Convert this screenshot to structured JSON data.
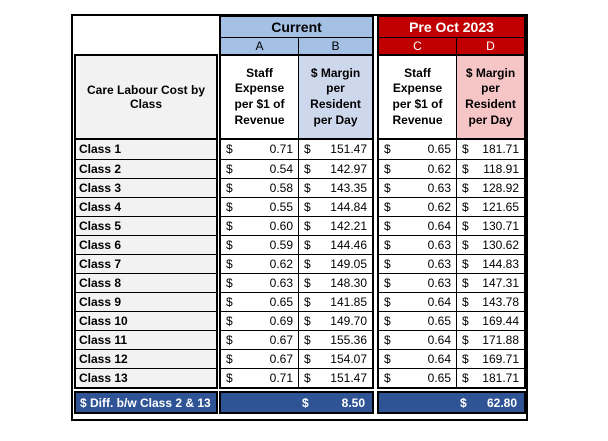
{
  "table": {
    "currency": "$",
    "groups": [
      {
        "name": "Current",
        "letters": [
          "A",
          "B"
        ]
      },
      {
        "name": "Pre Oct 2023",
        "letters": [
          "C",
          "D"
        ]
      }
    ],
    "row_header": "Care Labour Cost by\nClass",
    "col_header_staff": "Staff\nExpense\nper $1 of\nRevenue",
    "col_header_margin": "$ Margin\nper\nResident\nper Day",
    "rows": [
      {
        "label": "Class 1",
        "values": [
          "0.71",
          "151.47",
          "0.65",
          "181.71"
        ]
      },
      {
        "label": "Class 2",
        "values": [
          "0.54",
          "142.97",
          "0.62",
          "118.91"
        ]
      },
      {
        "label": "Class 3",
        "values": [
          "0.58",
          "143.35",
          "0.63",
          "128.92"
        ]
      },
      {
        "label": "Class 4",
        "values": [
          "0.55",
          "144.84",
          "0.62",
          "121.65"
        ]
      },
      {
        "label": "Class 5",
        "values": [
          "0.60",
          "142.21",
          "0.64",
          "130.71"
        ]
      },
      {
        "label": "Class 6",
        "values": [
          "0.59",
          "144.46",
          "0.63",
          "130.62"
        ]
      },
      {
        "label": "Class 7",
        "values": [
          "0.62",
          "149.05",
          "0.63",
          "144.83"
        ]
      },
      {
        "label": "Class 8",
        "values": [
          "0.63",
          "148.30",
          "0.63",
          "147.31"
        ]
      },
      {
        "label": "Class 9",
        "values": [
          "0.65",
          "141.85",
          "0.64",
          "143.78"
        ]
      },
      {
        "label": "Class 10",
        "values": [
          "0.69",
          "149.70",
          "0.65",
          "169.44"
        ]
      },
      {
        "label": "Class 11",
        "values": [
          "0.67",
          "155.36",
          "0.64",
          "171.88"
        ]
      },
      {
        "label": "Class 12",
        "values": [
          "0.67",
          "154.07",
          "0.64",
          "169.71"
        ]
      },
      {
        "label": "Class 13",
        "values": [
          "0.71",
          "151.47",
          "0.65",
          "181.71"
        ]
      }
    ],
    "footer": {
      "label": "$ Diff. b/w Class 2 & 13",
      "current": "8.50",
      "pre": "62.80"
    },
    "colors": {
      "current_header": "#A5C0E5",
      "pre_header": "#C00000",
      "margin_current_bg": "#CED8EC",
      "margin_pre_bg": "#F6C5C5",
      "row_label_bg": "#F2F2F2",
      "footer_bg": "#2F5496",
      "border": "#000000"
    }
  }
}
